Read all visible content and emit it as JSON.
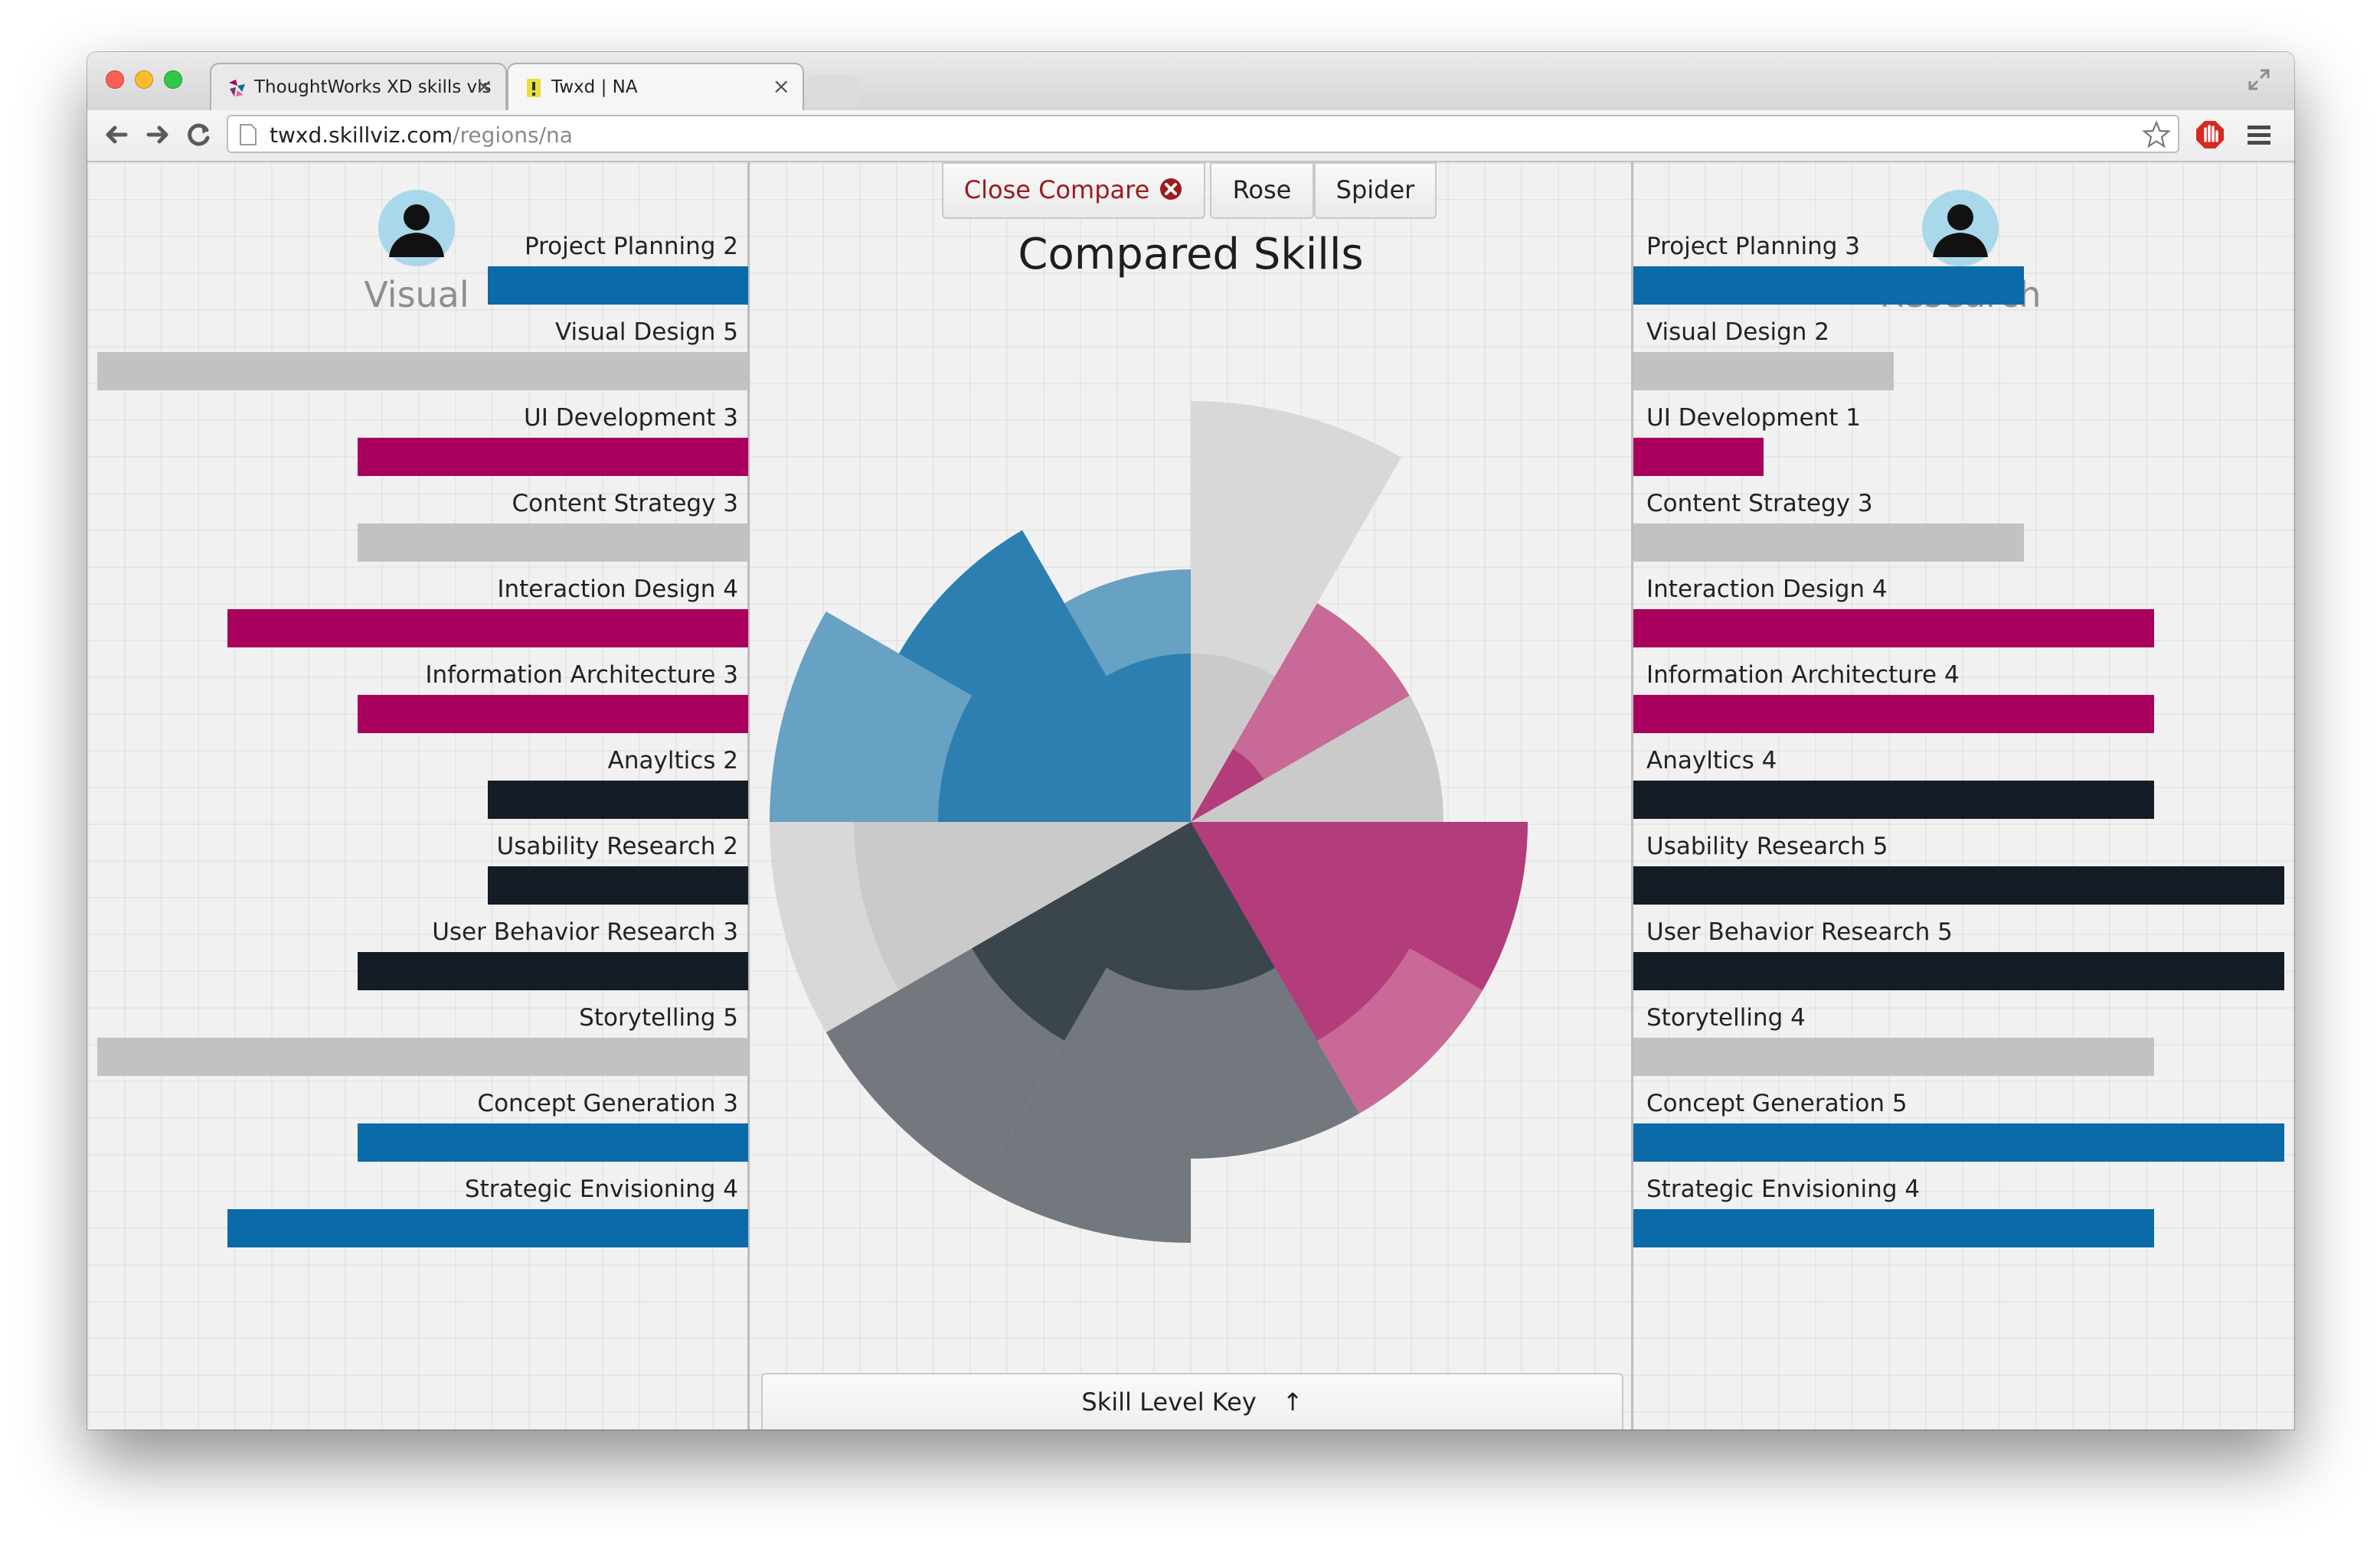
{
  "browser": {
    "tabs": [
      {
        "title": "ThoughtWorks XD skills vis",
        "active": false
      },
      {
        "title": "Twxd | NA",
        "active": true
      }
    ],
    "url_host": "twxd.skillviz.com",
    "url_path": "/regions/na"
  },
  "colors": {
    "planning": "#0b6aa8",
    "design": "#c2c2c2",
    "development": "#a8005c",
    "research": "#141c25"
  },
  "left_profile": {
    "name": "Visual",
    "skills": [
      {
        "label": "Project Planning 2",
        "level": 2,
        "color": "#0b6aa8"
      },
      {
        "label": "Visual Design 5",
        "level": 5,
        "color": "#c2c2c2"
      },
      {
        "label": "UI Development 3",
        "level": 3,
        "color": "#a8005c"
      },
      {
        "label": "Content Strategy 3",
        "level": 3,
        "color": "#c2c2c2"
      },
      {
        "label": "Interaction Design 4",
        "level": 4,
        "color": "#a8005c"
      },
      {
        "label": "Information Architecture 3",
        "level": 3,
        "color": "#a8005c"
      },
      {
        "label": "Anayltics 2",
        "level": 2,
        "color": "#141c25"
      },
      {
        "label": "Usability Research 2",
        "level": 2,
        "color": "#141c25"
      },
      {
        "label": "User Behavior Research 3",
        "level": 3,
        "color": "#141c25"
      },
      {
        "label": "Storytelling 5",
        "level": 5,
        "color": "#c2c2c2"
      },
      {
        "label": "Concept Generation 3",
        "level": 3,
        "color": "#0b6aa8"
      },
      {
        "label": "Strategic Envisioning 4",
        "level": 4,
        "color": "#0b6aa8"
      }
    ]
  },
  "right_profile": {
    "name": "Research",
    "skills": [
      {
        "label": "Project Planning 3",
        "level": 3,
        "color": "#0b6aa8"
      },
      {
        "label": "Visual Design 2",
        "level": 2,
        "color": "#c2c2c2"
      },
      {
        "label": "UI Development 1",
        "level": 1,
        "color": "#a8005c"
      },
      {
        "label": "Content Strategy 3",
        "level": 3,
        "color": "#c2c2c2"
      },
      {
        "label": "Interaction Design 4",
        "level": 4,
        "color": "#a8005c"
      },
      {
        "label": "Information Architecture 4",
        "level": 4,
        "color": "#a8005c"
      },
      {
        "label": "Anayltics 4",
        "level": 4,
        "color": "#141c25"
      },
      {
        "label": "Usability Research 5",
        "level": 5,
        "color": "#141c25"
      },
      {
        "label": "User Behavior Research 5",
        "level": 5,
        "color": "#141c25"
      },
      {
        "label": "Storytelling 4",
        "level": 4,
        "color": "#c2c2c2"
      },
      {
        "label": "Concept Generation 5",
        "level": 5,
        "color": "#0b6aa8"
      },
      {
        "label": "Strategic Envisioning 4",
        "level": 4,
        "color": "#0b6aa8"
      }
    ]
  },
  "compare": {
    "close_label": "Close Compare",
    "rose_label": "Rose",
    "spider_label": "Spider",
    "title": "Compared Skills",
    "key_label": "Skill Level Key",
    "key_arrow": "↑"
  },
  "chart_data": {
    "type": "rose",
    "max_level": 5,
    "categories": [
      "Project Planning",
      "Visual Design",
      "UI Development",
      "Content Strategy",
      "Interaction Design",
      "Information Architecture",
      "Anayltics",
      "Usability Research",
      "User Behavior Research",
      "Storytelling",
      "Concept Generation",
      "Strategic Envisioning"
    ],
    "series": [
      {
        "name": "Visual",
        "values": [
          2,
          5,
          3,
          3,
          4,
          3,
          2,
          2,
          3,
          5,
          3,
          4
        ]
      },
      {
        "name": "Research",
        "values": [
          3,
          2,
          1,
          3,
          4,
          4,
          4,
          5,
          5,
          4,
          5,
          4
        ]
      }
    ]
  }
}
